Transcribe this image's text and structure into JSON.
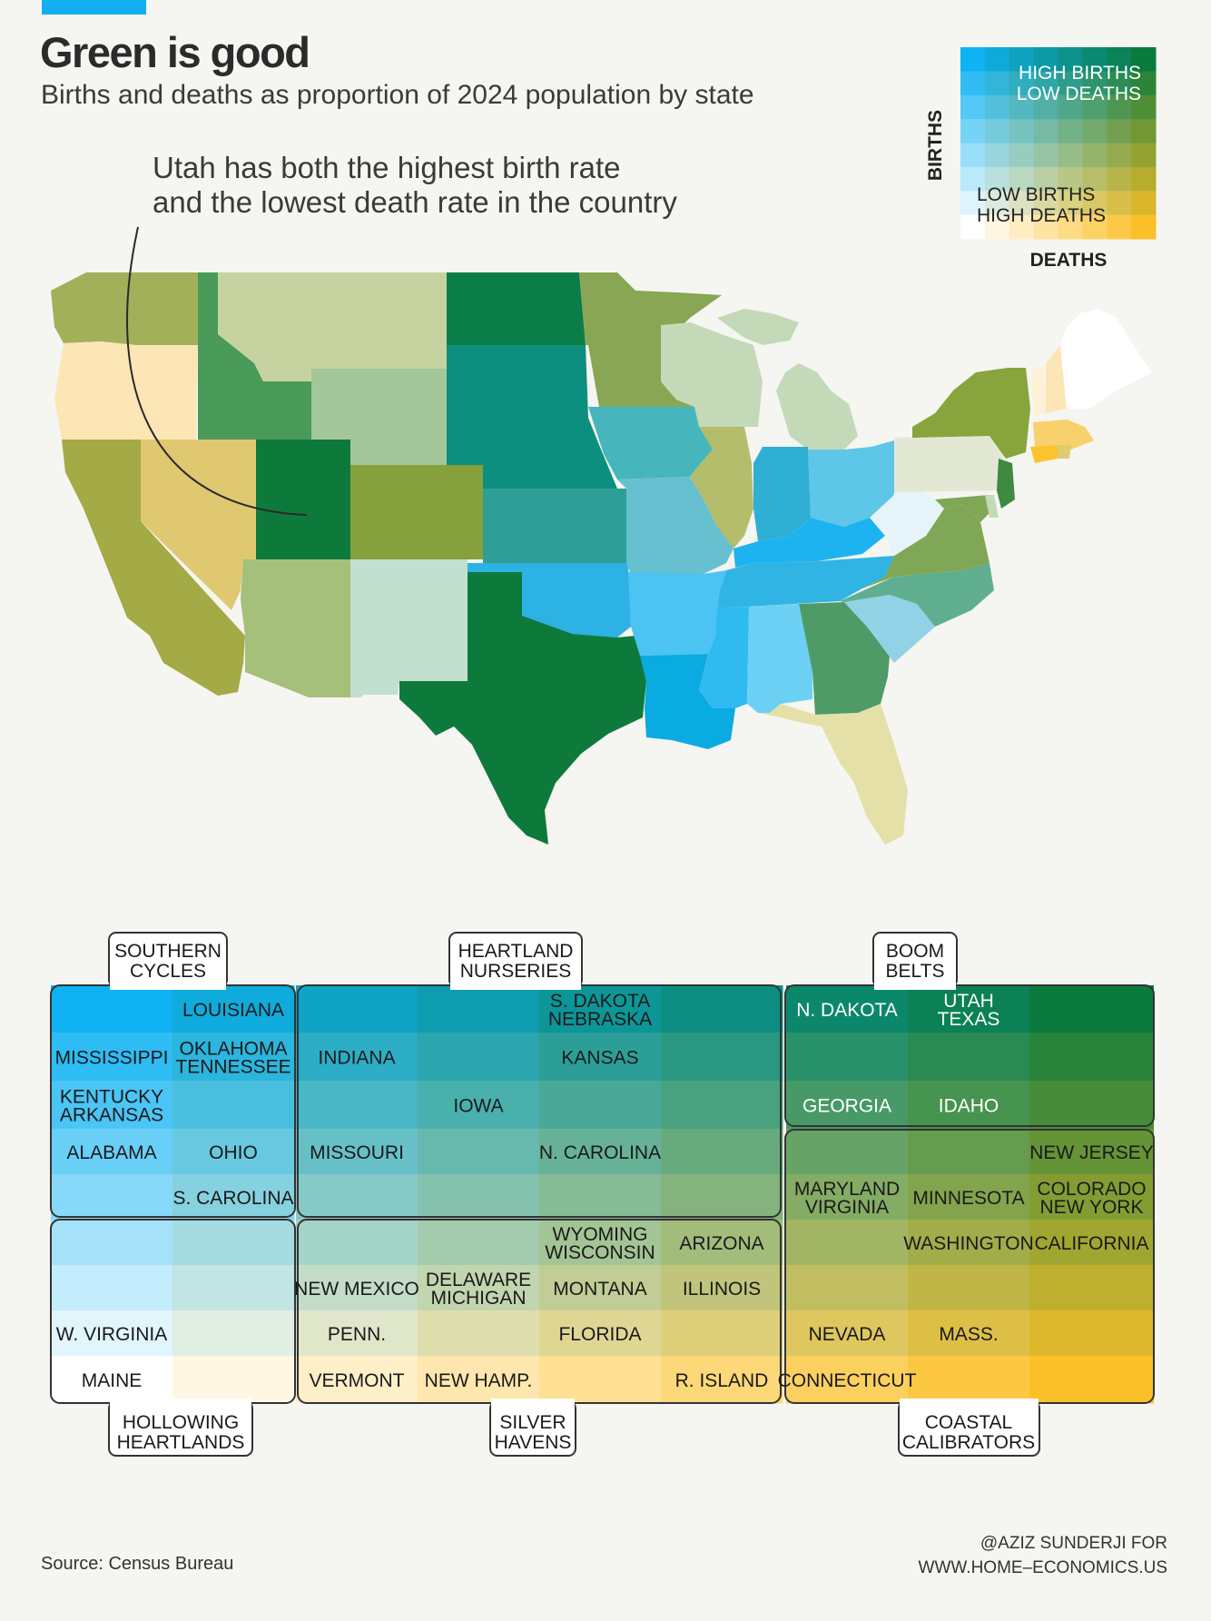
{
  "title": "Green is good",
  "subtitle": "Births and deaths as proportion of 2024 population by state",
  "annotation": {
    "line1": "Utah has both the highest birth rate",
    "line2": "and the lowest death rate in the country"
  },
  "legend": {
    "top_label_1": "HIGH BIRTHS",
    "top_label_2": "LOW DEATHS",
    "bottom_label_1": "LOW BIRTHS",
    "bottom_label_2": "HIGH DEATHS",
    "y_axis": "BIRTHS",
    "x_axis": "DEATHS"
  },
  "colors": {
    "high_births_low_deaths": "#0a7a3e",
    "high_births_high_deaths": "#0fb2f2",
    "low_births_low_deaths": "#ffffff",
    "low_births_high_deaths": "#fbc028",
    "background": "#f5f5f1"
  },
  "source": "Source: Census Bureau",
  "credit": {
    "line1": "@AZIZ SUNDERJI FOR",
    "line2": "WWW.HOME–ECONOMICS.US"
  },
  "chart_data": {
    "type": "heatmap",
    "title": "Green is good",
    "xlabel": "DEATHS",
    "ylabel": "BIRTHS",
    "columns": 9,
    "rows": 9,
    "groups": [
      {
        "name": "SOUTHERN CYCLES",
        "name_line1": "SOUTHERN",
        "name_line2": "CYCLES"
      },
      {
        "name": "HEARTLAND NURSERIES",
        "name_line1": "HEARTLAND",
        "name_line2": "NURSERIES"
      },
      {
        "name": "BOOM BELTS",
        "name_line1": "BOOM",
        "name_line2": "BELTS"
      },
      {
        "name": "HOLLOWING HEARTLANDS",
        "name_line1": "HOLLOWING",
        "name_line2": "HEARTLANDS"
      },
      {
        "name": "SILVER HAVENS",
        "name_line1": "SILVER",
        "name_line2": "HAVENS"
      },
      {
        "name": "COASTAL CALIBRATORS",
        "name_line1": "COASTAL",
        "name_line2": "CALIBRATORS"
      }
    ],
    "cells": [
      {
        "col": 1,
        "row": 0,
        "lines": [
          "LOUISIANA"
        ]
      },
      {
        "col": 4,
        "row": 0,
        "lines": [
          "S. DAKOTA",
          "NEBRASKA"
        ]
      },
      {
        "col": 6,
        "row": 0,
        "lines": [
          "N. DAKOTA"
        ]
      },
      {
        "col": 7,
        "row": 0,
        "lines": [
          "UTAH",
          "TEXAS"
        ]
      },
      {
        "col": 0,
        "row": 1,
        "lines": [
          "MISSISSIPPI"
        ]
      },
      {
        "col": 1,
        "row": 1,
        "lines": [
          "OKLAHOMA",
          "TENNESSEE"
        ]
      },
      {
        "col": 2,
        "row": 1,
        "lines": [
          "INDIANA"
        ]
      },
      {
        "col": 4,
        "row": 1,
        "lines": [
          "KANSAS"
        ]
      },
      {
        "col": 0,
        "row": 2,
        "lines": [
          "KENTUCKY",
          "ARKANSAS"
        ]
      },
      {
        "col": 3,
        "row": 2,
        "lines": [
          "IOWA"
        ]
      },
      {
        "col": 6,
        "row": 2,
        "lines": [
          "GEORGIA"
        ]
      },
      {
        "col": 7,
        "row": 2,
        "lines": [
          "IDAHO"
        ]
      },
      {
        "col": 0,
        "row": 3,
        "lines": [
          "ALABAMA"
        ]
      },
      {
        "col": 1,
        "row": 3,
        "lines": [
          "OHIO"
        ]
      },
      {
        "col": 2,
        "row": 3,
        "lines": [
          "MISSOURI"
        ]
      },
      {
        "col": 4,
        "row": 3,
        "lines": [
          "N. CAROLINA"
        ]
      },
      {
        "col": 8,
        "row": 3,
        "lines": [
          "NEW JERSEY"
        ]
      },
      {
        "col": 1,
        "row": 4,
        "lines": [
          "S. CAROLINA"
        ]
      },
      {
        "col": 6,
        "row": 4,
        "lines": [
          "MARYLAND",
          "VIRGINIA"
        ]
      },
      {
        "col": 7,
        "row": 4,
        "lines": [
          "MINNESOTA"
        ]
      },
      {
        "col": 8,
        "row": 4,
        "lines": [
          "COLORADO",
          "NEW YORK"
        ]
      },
      {
        "col": 4,
        "row": 5,
        "lines": [
          "WYOMING",
          "WISCONSIN"
        ]
      },
      {
        "col": 5,
        "row": 5,
        "lines": [
          "ARIZONA"
        ]
      },
      {
        "col": 7,
        "row": 5,
        "lines": [
          "WASHINGTON"
        ]
      },
      {
        "col": 8,
        "row": 5,
        "lines": [
          "CALIFORNIA"
        ]
      },
      {
        "col": 2,
        "row": 6,
        "lines": [
          "NEW MEXICO"
        ]
      },
      {
        "col": 3,
        "row": 6,
        "lines": [
          "DELAWARE",
          "MICHIGAN"
        ]
      },
      {
        "col": 4,
        "row": 6,
        "lines": [
          "MONTANA"
        ]
      },
      {
        "col": 5,
        "row": 6,
        "lines": [
          "ILLINOIS"
        ]
      },
      {
        "col": 0,
        "row": 7,
        "lines": [
          "W. VIRGINIA"
        ]
      },
      {
        "col": 2,
        "row": 7,
        "lines": [
          "PENN."
        ]
      },
      {
        "col": 4,
        "row": 7,
        "lines": [
          "FLORIDA"
        ]
      },
      {
        "col": 6,
        "row": 7,
        "lines": [
          "NEVADA"
        ]
      },
      {
        "col": 7,
        "row": 7,
        "lines": [
          "MASS."
        ]
      },
      {
        "col": 0,
        "row": 8,
        "lines": [
          "MAINE"
        ]
      },
      {
        "col": 2,
        "row": 8,
        "lines": [
          "VERMONT"
        ]
      },
      {
        "col": 3,
        "row": 8,
        "lines": [
          "NEW HAMP."
        ]
      },
      {
        "col": 5,
        "row": 8,
        "lines": [
          "R. ISLAND"
        ]
      },
      {
        "col": 6,
        "row": 8,
        "lines": [
          "CONNECTICUT"
        ]
      }
    ]
  }
}
